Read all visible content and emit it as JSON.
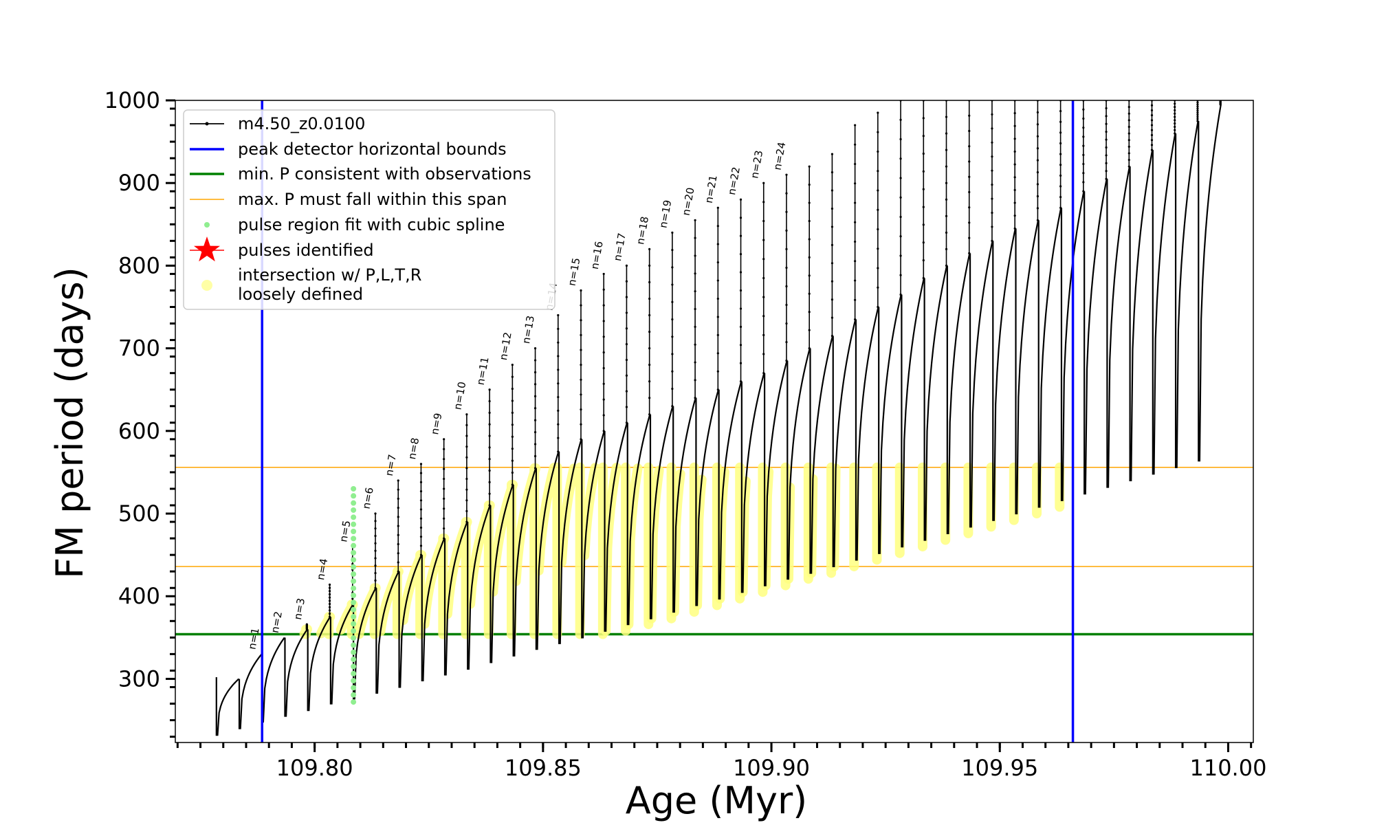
{
  "chart_data": {
    "type": "line",
    "xlabel": "Age (Myr)",
    "ylabel": "FM period (days)",
    "xlim": [
      109.7695,
      110.0055
    ],
    "ylim": [
      223,
      1000
    ],
    "xticks": [
      109.8,
      109.85,
      109.9,
      109.95,
      110.0
    ],
    "xtick_labels": [
      "109.80",
      "109.85",
      "109.90",
      "109.95",
      "110.00"
    ],
    "yticks": [
      300,
      400,
      500,
      600,
      700,
      800,
      900,
      1000
    ],
    "ytick_labels": [
      "300",
      "400",
      "500",
      "600",
      "700",
      "800",
      "900",
      "1000"
    ],
    "grid": false,
    "legend_position": "upper-left",
    "legend": [
      {
        "label": "m4.50_z0.0100",
        "style": "line-marker",
        "color": "#000000"
      },
      {
        "label": "peak detector horizontal bounds",
        "style": "line",
        "color": "#0000ff"
      },
      {
        "label": "min. P consistent with observations",
        "style": "line",
        "color": "#008000"
      },
      {
        "label": "max. P must fall within this span",
        "style": "thin-line",
        "color": "#ffa500"
      },
      {
        "label": "pulse region fit with cubic spline",
        "style": "dot",
        "color": "#90ee90"
      },
      {
        "label": "pulses identified",
        "style": "star",
        "color": "#ff0000"
      },
      {
        "label": "intersection w/ P,L,T,R",
        "label2": "loosely defined",
        "style": "circle",
        "color": "#ffff80"
      }
    ],
    "vertical_lines": [
      {
        "x": 109.7885,
        "color": "#0000ff"
      },
      {
        "x": 109.966,
        "color": "#0000ff"
      }
    ],
    "horizontal_lines": [
      {
        "y": 354,
        "color": "#008000",
        "kind": "min_period"
      },
      {
        "y": 436,
        "color": "#ffa500",
        "kind": "span_low"
      },
      {
        "y": 556,
        "color": "#ffa500",
        "kind": "span_high"
      }
    ],
    "pulse_labels": [
      "n=1",
      "n=2",
      "n=3",
      "n=4",
      "n=5",
      "n=6",
      "n=7",
      "n=8",
      "n=9",
      "n=10",
      "n=11",
      "n=12",
      "n=13",
      "n=14",
      "n=15",
      "n=16",
      "n=17",
      "n=18",
      "n=19",
      "n=20",
      "n=21",
      "n=22",
      "n=23",
      "n=24"
    ],
    "series": [
      {
        "name": "m4.50_z0.0100",
        "color": "#000000",
        "pulse_ages": [
          109.7785,
          109.7835,
          109.7885,
          109.7935,
          109.7985,
          109.8035,
          109.8085,
          109.8135,
          109.8185,
          109.8235,
          109.8285,
          109.8335,
          109.8385,
          109.8435,
          109.8485,
          109.8535,
          109.8585,
          109.8635,
          109.8685,
          109.8735,
          109.8785,
          109.8835,
          109.8885,
          109.8935,
          109.8985,
          109.9035,
          109.9085,
          109.9135,
          109.9185,
          109.9235,
          109.9285,
          109.9335,
          109.9385,
          109.9435,
          109.9485,
          109.9535,
          109.9585,
          109.9635,
          109.9685,
          109.9735,
          109.9785,
          109.9835,
          109.9885,
          109.9935
        ],
        "cycle_max_period": [
          300,
          330,
          350,
          360,
          375,
          390,
          410,
          430,
          450,
          470,
          490,
          510,
          535,
          555,
          575,
          590,
          600,
          610,
          620,
          630,
          640,
          650,
          660,
          670,
          685,
          700,
          715,
          735,
          750,
          765,
          785,
          800,
          815,
          830,
          845,
          855,
          870,
          890,
          905,
          920,
          940,
          960,
          975,
          995
        ],
        "cycle_min_period": [
          232,
          240,
          248,
          255,
          262,
          270,
          276,
          283,
          290,
          298,
          305,
          312,
          320,
          328,
          336,
          343,
          350,
          358,
          366,
          373,
          381,
          389,
          397,
          405,
          413,
          421,
          428,
          436,
          444,
          452,
          460,
          468,
          476,
          484,
          492,
          500,
          508,
          516,
          524,
          532,
          540,
          548,
          556,
          564
        ],
        "spike_peak_period": [
          null,
          null,
          null,
          366,
          414,
          460,
          500,
          540,
          560,
          590,
          620,
          650,
          680,
          700,
          740,
          770,
          790,
          800,
          820,
          840,
          855,
          870,
          880,
          900,
          910,
          920,
          935,
          970,
          985,
          1000,
          1000,
          1000,
          1000,
          1000,
          1000,
          1000,
          1000,
          1000,
          1000,
          1000,
          1000,
          1000,
          1000,
          1000
        ]
      }
    ],
    "highlight_regions": {
      "cubic_spline_fit": {
        "x": 109.8085,
        "y_range": [
          272,
          530
        ],
        "color": "#90ee90"
      },
      "intersection_color": "#ffff80"
    }
  }
}
